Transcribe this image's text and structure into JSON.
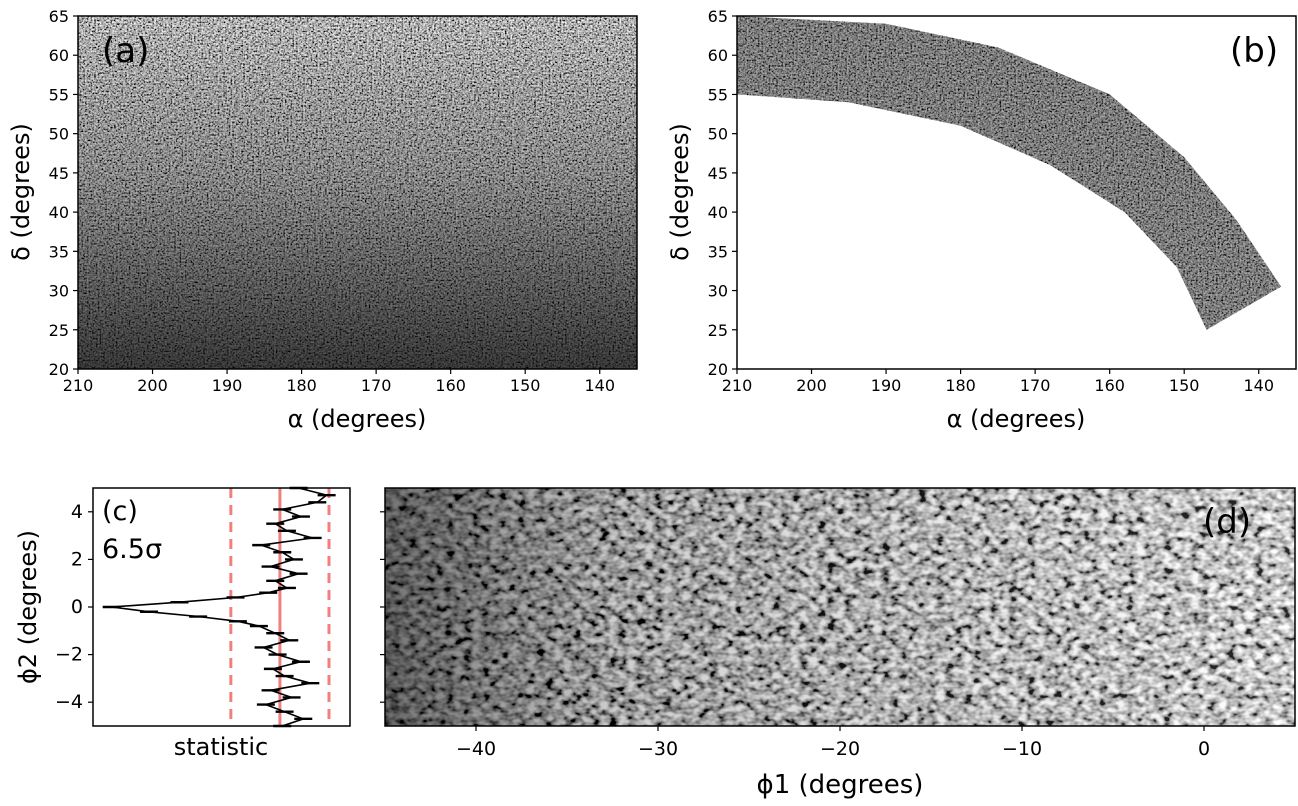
{
  "chart_data": [
    {
      "panel": "(a)",
      "type": "heatmap",
      "description_tag": "stellar density map",
      "xlabel": "α (degrees)",
      "ylabel": "δ (degrees)",
      "xlim": [
        210,
        135
      ],
      "ylim": [
        20,
        65
      ],
      "xticks": [
        210,
        200,
        190,
        180,
        170,
        160,
        150,
        140
      ],
      "yticks": [
        20,
        25,
        30,
        35,
        40,
        45,
        50,
        55,
        60,
        65
      ],
      "colormap": "greys",
      "gradient": "darker toward low δ"
    },
    {
      "panel": "(b)",
      "type": "heatmap",
      "xlabel": "α (degrees)",
      "ylabel": "δ (degrees)",
      "xlim": [
        210,
        135
      ],
      "ylim": [
        20,
        65
      ],
      "xticks": [
        210,
        200,
        190,
        180,
        170,
        160,
        150,
        140
      ],
      "yticks": [
        20,
        25,
        30,
        35,
        40,
        45,
        50,
        55,
        60,
        65
      ],
      "region_outer": [
        [
          210,
          65
        ],
        [
          190,
          64
        ],
        [
          175,
          61
        ],
        [
          160,
          55
        ],
        [
          150,
          47
        ],
        [
          143,
          39
        ],
        [
          137,
          30.5
        ]
      ],
      "region_inner": [
        [
          210,
          55
        ],
        [
          195,
          54
        ],
        [
          180,
          51
        ],
        [
          168,
          46
        ],
        [
          158,
          40
        ],
        [
          151,
          33
        ],
        [
          147,
          25
        ]
      ]
    },
    {
      "panel": "(c)",
      "type": "line",
      "annotation": "6.5σ",
      "xlabel": "statistic",
      "ylabel": "ϕ2 (degrees)",
      "ylim": [
        -5,
        5
      ],
      "yticks": [
        -4,
        -2,
        0,
        2,
        4
      ],
      "mean_line_color": "#f08080",
      "profile_y": [
        -5.0,
        -4.7,
        -4.4,
        -4.1,
        -3.8,
        -3.5,
        -3.2,
        -2.9,
        -2.6,
        -2.3,
        -2.0,
        -1.7,
        -1.4,
        -1.1,
        -0.8,
        -0.6,
        -0.4,
        -0.2,
        0.0,
        0.2,
        0.4,
        0.6,
        0.8,
        1.1,
        1.4,
        1.7,
        2.0,
        2.3,
        2.6,
        2.9,
        3.2,
        3.5,
        3.8,
        4.1,
        4.4,
        4.7,
        5.0
      ],
      "profile_value": [
        0.1,
        1.0,
        0.2,
        -0.6,
        0.5,
        -0.4,
        1.3,
        0.2,
        -0.3,
        0.9,
        -0.1,
        -0.7,
        0.4,
        -0.2,
        -0.9,
        -1.8,
        -3.5,
        -5.6,
        -7.2,
        -4.3,
        -1.9,
        -0.5,
        0.3,
        -0.2,
        0.8,
        -0.4,
        0.6,
        0.1,
        -0.8,
        1.4,
        0.3,
        -0.2,
        0.9,
        0.1,
        1.6,
        2.0,
        0.8
      ],
      "sigma_band": [
        -1.0,
        1.0
      ]
    },
    {
      "panel": "(d)",
      "type": "heatmap",
      "xlabel": "ϕ1 (degrees)",
      "xlim": [
        -45,
        5
      ],
      "ylim": [
        -5,
        5
      ],
      "xticks": [
        -40,
        -30,
        -20,
        -10,
        0
      ],
      "colormap": "greys"
    }
  ]
}
